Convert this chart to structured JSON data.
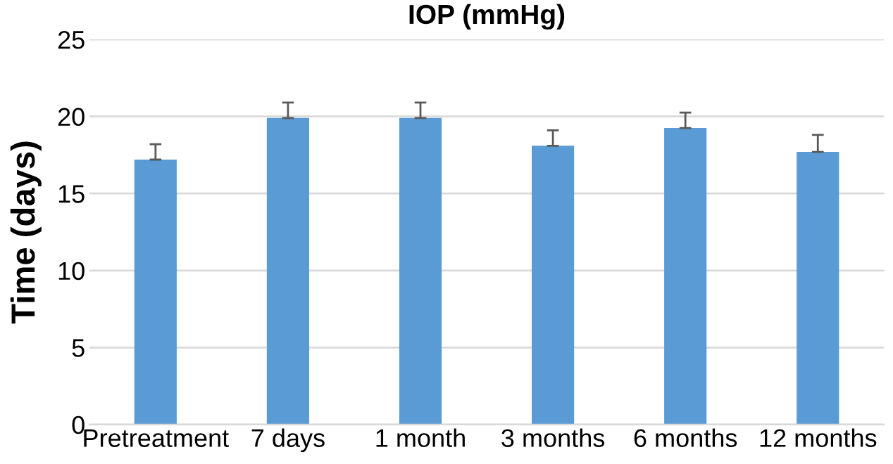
{
  "chart_data": {
    "type": "bar",
    "title": "IOP (mmHg)",
    "ylabel": "Time (days)",
    "categories": [
      "Pretreatment",
      "7 days",
      "1 month",
      "3 months",
      "6 months",
      "12 months"
    ],
    "values": [
      17.2,
      19.9,
      19.9,
      18.1,
      19.25,
      17.7
    ],
    "errors": [
      [
        17.2,
        18.2
      ],
      [
        19.9,
        20.9
      ],
      [
        19.9,
        20.9
      ],
      [
        18.1,
        19.1
      ],
      [
        19.25,
        20.25
      ],
      [
        17.7,
        18.8
      ]
    ],
    "color": "#5b9bd5",
    "ylim": [
      0,
      25
    ],
    "yticks": [
      0,
      5,
      10,
      15,
      20,
      25
    ],
    "grid": "y"
  }
}
